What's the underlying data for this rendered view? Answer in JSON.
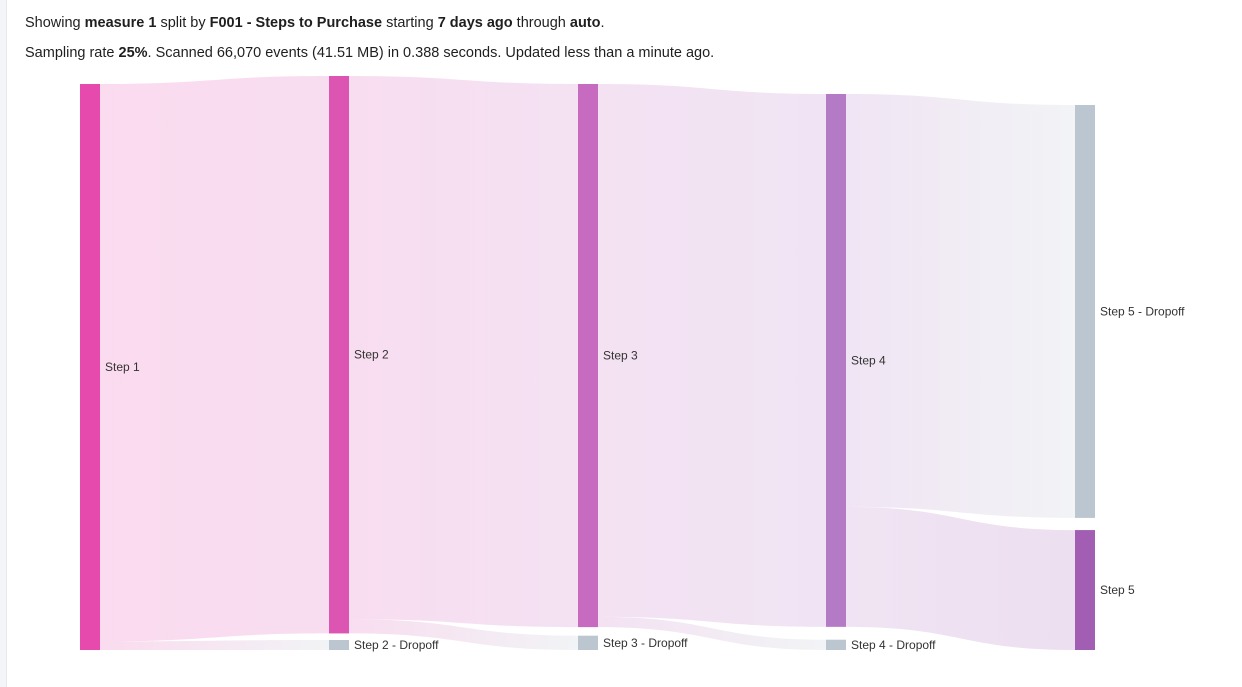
{
  "summary": {
    "showing": "Showing",
    "measure": "measure 1",
    "split_by": "split by",
    "dimension": "F001 - Steps to Purchase",
    "starting": "starting",
    "start_time": "7 days ago",
    "through": "through",
    "end_time": "auto",
    "end_punct": ".",
    "sampling_prefix": "Sampling rate",
    "sampling_rate": "25%",
    "scan_info": ". Scanned 66,070 events (41.51 MB) in 0.388 seconds. Updated less than a minute ago."
  },
  "colors": {
    "step1": "#e64aad",
    "step2": "#dc55b3",
    "step3": "#c66bc0",
    "step4": "#b57ac6",
    "step5": "#a15eb2",
    "dropoff": "#bcc6d0"
  },
  "chart_data": {
    "type": "sankey",
    "unit": "events",
    "nodes": [
      {
        "id": "step1",
        "label": "Step 1",
        "column": 0,
        "value": 66070,
        "color_key": "step1"
      },
      {
        "id": "step2",
        "label": "Step 2",
        "column": 1,
        "value": 65070,
        "color_key": "step2"
      },
      {
        "id": "step2_dropoff",
        "label": "Step 2 - Dropoff",
        "column": 1,
        "value": 1000,
        "color_key": "dropoff"
      },
      {
        "id": "step3",
        "label": "Step 3",
        "column": 2,
        "value": 63400,
        "color_key": "step3"
      },
      {
        "id": "step3_dropoff",
        "label": "Step 3 - Dropoff",
        "column": 2,
        "value": 1670,
        "color_key": "dropoff"
      },
      {
        "id": "step4",
        "label": "Step 4",
        "column": 3,
        "value": 62200,
        "color_key": "step4"
      },
      {
        "id": "step4_dropoff",
        "label": "Step 4 - Dropoff",
        "column": 3,
        "value": 1200,
        "color_key": "dropoff"
      },
      {
        "id": "step5_dropoff",
        "label": "Step 5 - Dropoff",
        "column": 4,
        "value": 48200,
        "color_key": "dropoff"
      },
      {
        "id": "step5",
        "label": "Step 5",
        "column": 4,
        "value": 14000,
        "color_key": "step5"
      }
    ],
    "links": [
      {
        "source": "step1",
        "target": "step2",
        "value": 65070
      },
      {
        "source": "step1",
        "target": "step2_dropoff",
        "value": 1000
      },
      {
        "source": "step2",
        "target": "step3",
        "value": 63400
      },
      {
        "source": "step2",
        "target": "step3_dropoff",
        "value": 1670
      },
      {
        "source": "step3",
        "target": "step4",
        "value": 62200
      },
      {
        "source": "step3",
        "target": "step4_dropoff",
        "value": 1200
      },
      {
        "source": "step4",
        "target": "step5_dropoff",
        "value": 48200
      },
      {
        "source": "step4",
        "target": "step5",
        "value": 14000
      }
    ]
  }
}
